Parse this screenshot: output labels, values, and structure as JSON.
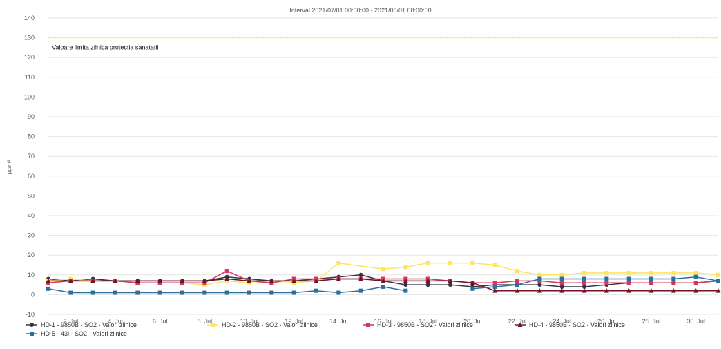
{
  "colors": {
    "background": "#ffffff",
    "grid": "#e6e6e6",
    "axis_text": "#555555",
    "title_text": "#555555",
    "limit_line": "#ffe97a"
  },
  "chart_data": {
    "type": "line",
    "title": "Interval 2021/07/01 00:00:00 - 2021/08/01 00:00:00",
    "xlabel": "",
    "ylabel": "µg/m³",
    "ylim": [
      -10,
      140
    ],
    "y_ticks": [
      -10,
      0,
      10,
      20,
      30,
      40,
      50,
      60,
      70,
      80,
      90,
      100,
      110,
      120,
      130,
      140
    ],
    "x_range": [
      1,
      31
    ],
    "x_tick_days": [
      2,
      4,
      6,
      8,
      10,
      12,
      14,
      16,
      18,
      20,
      22,
      24,
      26,
      28,
      30
    ],
    "x_tick_labels": [
      "2. Jul",
      "4. Jul",
      "6. Jul",
      "8. Jul",
      "10. Jul",
      "12. Jul",
      "14. Jul",
      "16. Jul",
      "18. Jul",
      "20. Jul",
      "22. Jul",
      "24. Jul",
      "26. Jul",
      "28. Jul",
      "30. Jul"
    ],
    "grid": true,
    "legend_position": "bottom",
    "plot_bands": [
      {
        "value": 130,
        "label": "Valoare limita zilnica protectia sanatatii",
        "color": "#ffe97a"
      }
    ],
    "series": [
      {
        "name": "HD-1 - 9850B - SO2 - Valori zilnice",
        "color": "#333344",
        "marker": "circle",
        "x": [
          1,
          2,
          3,
          4,
          5,
          6,
          7,
          8,
          9,
          10,
          11,
          12,
          13,
          14,
          15,
          16,
          17,
          18,
          19,
          20,
          21,
          22,
          23,
          24,
          25,
          26,
          27,
          28,
          29,
          30,
          31
        ],
        "y": [
          8,
          7,
          8,
          7,
          7,
          7,
          7,
          7,
          9,
          8,
          7,
          7,
          8,
          9,
          10,
          7,
          5,
          5,
          5,
          4,
          5,
          5,
          5,
          4,
          4,
          5,
          6,
          6,
          6,
          6,
          7
        ]
      },
      {
        "name": "HD-2 - 9850B - SO2 - Valori zilnice",
        "color": "#ffe45c",
        "marker": "square",
        "x": [
          1,
          2,
          3,
          4,
          5,
          6,
          7,
          8,
          9,
          10,
          11,
          12,
          13,
          14,
          16,
          17,
          18,
          19,
          20,
          21,
          22,
          23,
          24,
          25,
          26,
          27,
          28,
          29,
          30,
          31
        ],
        "y": [
          7,
          8,
          7,
          7,
          6,
          6,
          6,
          5,
          7,
          6,
          6,
          6,
          7,
          16,
          13,
          14,
          16,
          16,
          16,
          15,
          12,
          10,
          10,
          11,
          11,
          11,
          11,
          11,
          11,
          10
        ]
      },
      {
        "name": "HD-3 - 9850B - SO2 - Valori zilnice",
        "color": "#d6355e",
        "marker": "square",
        "x": [
          1,
          2,
          3,
          4,
          5,
          6,
          7,
          8,
          9,
          10,
          11,
          12,
          13,
          14,
          15,
          16,
          17,
          18,
          19,
          20,
          21,
          22,
          23,
          24,
          25,
          26,
          27,
          28,
          29,
          30,
          31
        ],
        "y": [
          6,
          7,
          7,
          7,
          6,
          6,
          6,
          6,
          12,
          7,
          6,
          8,
          8,
          8,
          8,
          8,
          8,
          8,
          7,
          6,
          6,
          7,
          7,
          6,
          6,
          6,
          6,
          6,
          6,
          6,
          7
        ]
      },
      {
        "name": "HD-4 - 9850B - SO2 - Valori zilnice",
        "color": "#6b1626",
        "marker": "triangle",
        "x": [
          1,
          2,
          3,
          4,
          5,
          6,
          7,
          8,
          9,
          10,
          11,
          12,
          13,
          14,
          15,
          16,
          17,
          18,
          19,
          20,
          21,
          22,
          23,
          24,
          25,
          26,
          27,
          28,
          29,
          30,
          31
        ],
        "y": [
          7,
          7,
          7,
          7,
          7,
          7,
          7,
          7,
          8,
          7,
          7,
          7,
          7,
          8,
          8,
          7,
          7,
          7,
          7,
          6,
          2,
          2,
          2,
          2,
          2,
          2,
          2,
          2,
          2,
          2,
          2
        ]
      },
      {
        "name": "HD-5 - 43i - SO2 - Valori zilnice",
        "color": "#2b6f9e",
        "marker": "square",
        "x": [
          1,
          2,
          3,
          4,
          5,
          6,
          7,
          8,
          9,
          10,
          11,
          12,
          13,
          14,
          15,
          16,
          17,
          null,
          20,
          21,
          22,
          23,
          24,
          25,
          26,
          27,
          28,
          29,
          30,
          31
        ],
        "y": [
          3,
          1,
          1,
          1,
          1,
          1,
          1,
          1,
          1,
          1,
          1,
          1,
          2,
          1,
          2,
          4,
          2,
          null,
          3,
          4,
          5,
          8,
          8,
          8,
          8,
          8,
          8,
          8,
          9,
          7
        ]
      }
    ]
  }
}
